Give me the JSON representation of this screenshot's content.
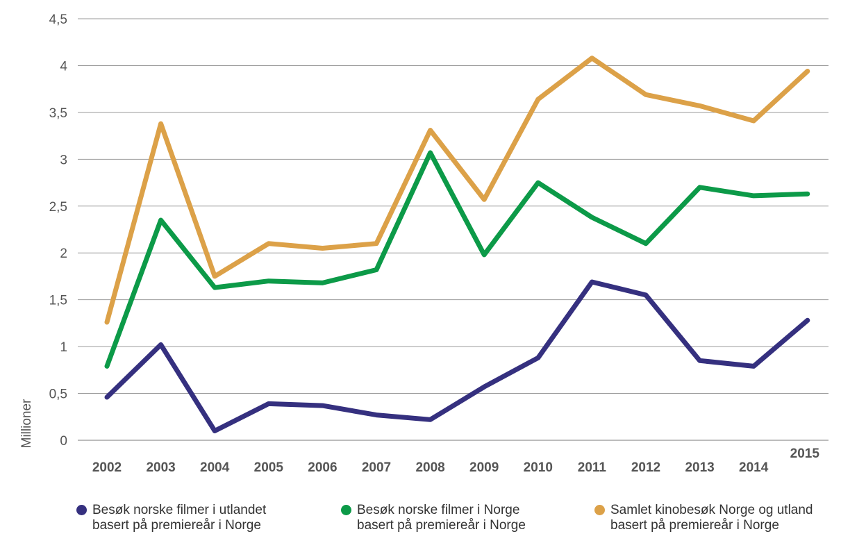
{
  "chart_data": {
    "type": "line",
    "ylabel": "Millioner",
    "ylim": [
      0,
      4.5
    ],
    "yticks": [
      "0",
      "0,5",
      "1",
      "1,5",
      "2",
      "2,5",
      "3",
      "3,5",
      "4",
      "4,5"
    ],
    "ytick_values": [
      0,
      0.5,
      1,
      1.5,
      2,
      2.5,
      3,
      3.5,
      4,
      4.5
    ],
    "categories": [
      "2002",
      "2003",
      "2004",
      "2005",
      "2006",
      "2007",
      "2008",
      "2009",
      "2010",
      "2011",
      "2012",
      "2013",
      "2014",
      "2015"
    ],
    "grid": true,
    "legend_position": "bottom",
    "series": [
      {
        "name": "Besøk norske filmer i utlandet\nbasert på premiereår i Norge",
        "color": "#35307f",
        "values": [
          0.46,
          1.02,
          0.1,
          0.39,
          0.37,
          0.27,
          0.22,
          0.57,
          0.88,
          1.69,
          1.55,
          0.85,
          0.79,
          1.28
        ]
      },
      {
        "name": "Besøk norske filmer i Norge\nbasert på premiereår i Norge",
        "color": "#0c9a48",
        "values": [
          0.79,
          2.35,
          1.63,
          1.7,
          1.68,
          1.82,
          3.07,
          1.98,
          2.75,
          2.38,
          2.1,
          2.7,
          2.61,
          2.63
        ]
      },
      {
        "name": "Samlet kinobesøk Norge og utland\nbasert på premiereår i Norge",
        "color": "#dca148",
        "values": [
          1.26,
          3.38,
          1.75,
          2.1,
          2.05,
          2.1,
          3.31,
          2.57,
          3.64,
          4.08,
          3.69,
          3.57,
          3.41,
          3.94
        ]
      }
    ]
  }
}
